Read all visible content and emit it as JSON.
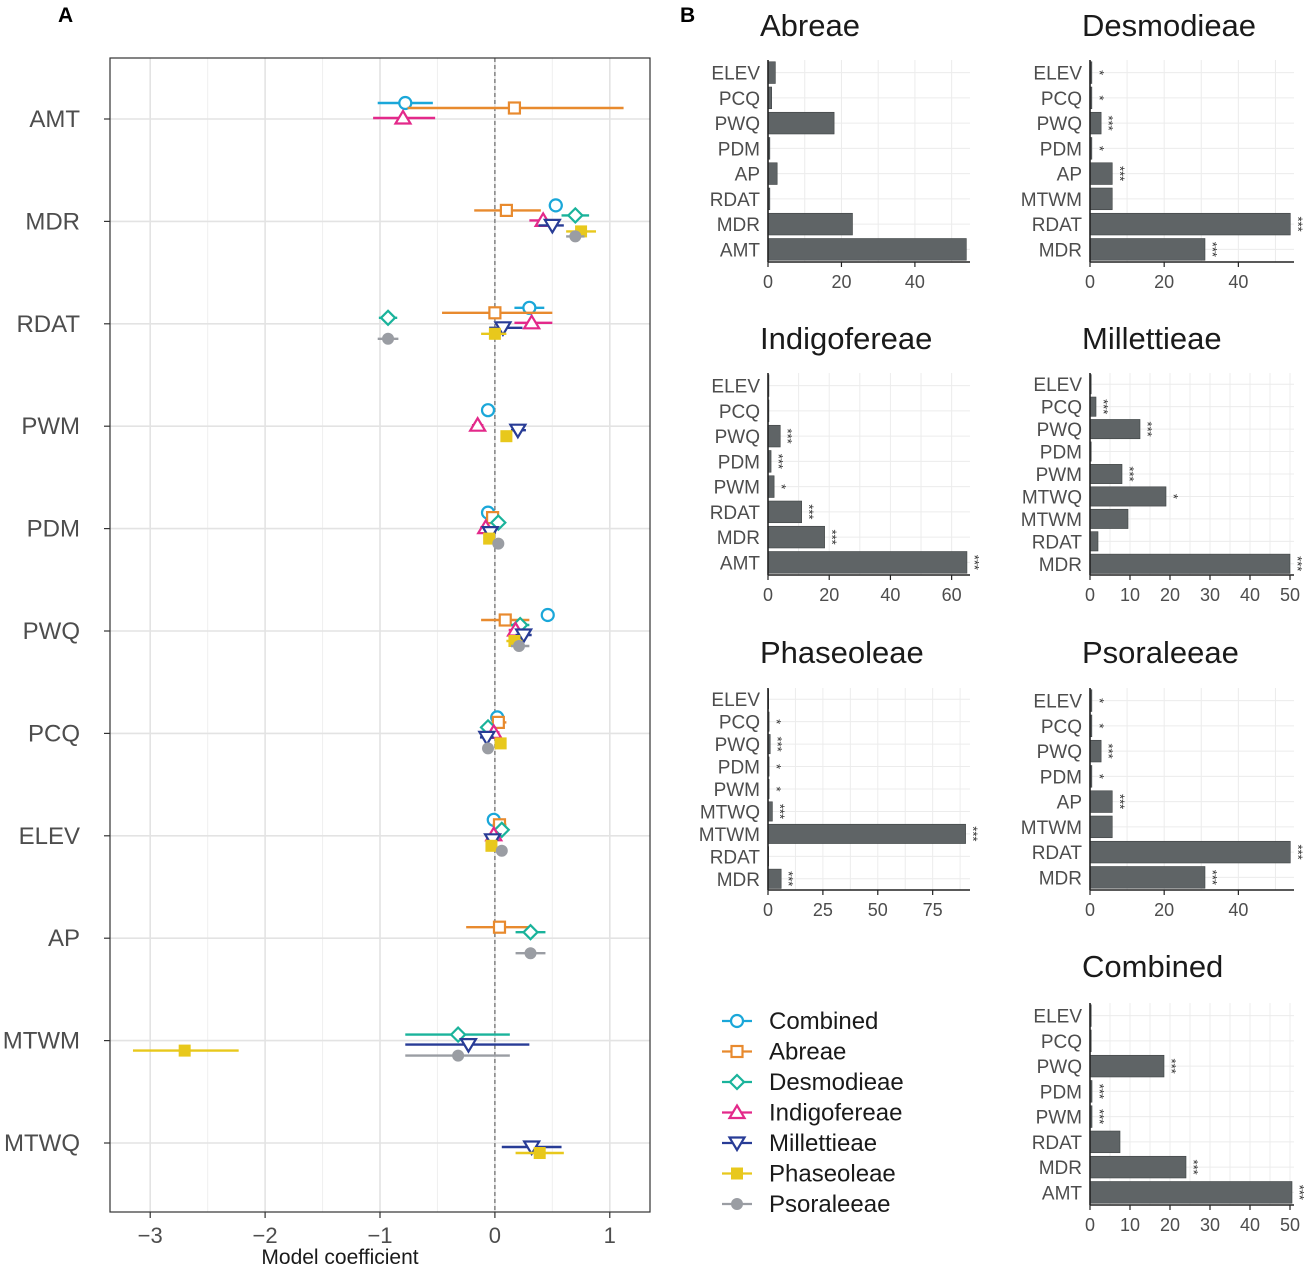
{
  "panel_a_letter": "A",
  "panel_b_letter": "B",
  "legend": [
    {
      "name": "Combined",
      "color": "#1AA7D9",
      "shape": "circle-open"
    },
    {
      "name": "Abreae",
      "color": "#E88A2E",
      "shape": "square-open"
    },
    {
      "name": "Desmodieae",
      "color": "#1AB39B",
      "shape": "diamond-open"
    },
    {
      "name": "Indigofereae",
      "color": "#E3298A",
      "shape": "triangle-up-open"
    },
    {
      "name": "Millettieae",
      "color": "#283C96",
      "shape": "triangle-down-open"
    },
    {
      "name": "Phaseoleae",
      "color": "#E8C81C",
      "shape": "square-filled"
    },
    {
      "name": "Psoraleeae",
      "color": "#9A9DA3",
      "shape": "circle-filled"
    }
  ],
  "chart_data": [
    {
      "type": "scatter",
      "subtype": "coefficient-plot",
      "xlabel": "Model coefficient",
      "xlim": [
        -3.35,
        1.35
      ],
      "xticks": [
        -3,
        -2,
        -1,
        0,
        1
      ],
      "xtick_labels": [
        "−3",
        "−2",
        "−1",
        "0",
        "1"
      ],
      "reference_line": 0,
      "categories": [
        "AMT",
        "MDR",
        "RDAT",
        "PWM",
        "PDM",
        "PWQ",
        "PCQ",
        "ELEV",
        "AP",
        "MTWM",
        "MTWQ"
      ],
      "points": [
        {
          "var": "AMT",
          "group": "Combined",
          "est": -0.78,
          "lo": -1.02,
          "hi": -0.54
        },
        {
          "var": "AMT",
          "group": "Abreae",
          "est": 0.17,
          "lo": -0.76,
          "hi": 1.12
        },
        {
          "var": "AMT",
          "group": "Indigofereae",
          "est": -0.8,
          "lo": -1.06,
          "hi": -0.52
        },
        {
          "var": "MDR",
          "group": "Combined",
          "est": 0.53,
          "lo": 0.47,
          "hi": 0.59
        },
        {
          "var": "MDR",
          "group": "Abreae",
          "est": 0.1,
          "lo": -0.18,
          "hi": 0.4
        },
        {
          "var": "MDR",
          "group": "Desmodieae",
          "est": 0.7,
          "lo": 0.58,
          "hi": 0.82
        },
        {
          "var": "MDR",
          "group": "Indigofereae",
          "est": 0.42,
          "lo": 0.3,
          "hi": 0.55
        },
        {
          "var": "MDR",
          "group": "Millettieae",
          "est": 0.5,
          "lo": 0.38,
          "hi": 0.6
        },
        {
          "var": "MDR",
          "group": "Phaseoleae",
          "est": 0.75,
          "lo": 0.62,
          "hi": 0.88
        },
        {
          "var": "MDR",
          "group": "Psoraleeae",
          "est": 0.7,
          "lo": 0.62,
          "hi": 0.78
        },
        {
          "var": "RDAT",
          "group": "Combined",
          "est": 0.3,
          "lo": 0.17,
          "hi": 0.43
        },
        {
          "var": "RDAT",
          "group": "Abreae",
          "est": 0.0,
          "lo": -0.46,
          "hi": 0.5
        },
        {
          "var": "RDAT",
          "group": "Desmodieae",
          "est": -0.93,
          "lo": -1.01,
          "hi": -0.85
        },
        {
          "var": "RDAT",
          "group": "Indigofereae",
          "est": 0.32,
          "lo": 0.17,
          "hi": 0.5
        },
        {
          "var": "RDAT",
          "group": "Millettieae",
          "est": 0.07,
          "lo": -0.05,
          "hi": 0.24
        },
        {
          "var": "RDAT",
          "group": "Phaseoleae",
          "est": 0.0,
          "lo": -0.12,
          "hi": 0.1
        },
        {
          "var": "RDAT",
          "group": "Psoraleeae",
          "est": -0.93,
          "lo": -1.02,
          "hi": -0.84
        },
        {
          "var": "PWM",
          "group": "Combined",
          "est": -0.06,
          "lo": -0.1,
          "hi": -0.02
        },
        {
          "var": "PWM",
          "group": "Indigofereae",
          "est": -0.15,
          "lo": -0.2,
          "hi": -0.1
        },
        {
          "var": "PWM",
          "group": "Millettieae",
          "est": 0.2,
          "lo": 0.14,
          "hi": 0.27
        },
        {
          "var": "PWM",
          "group": "Phaseoleae",
          "est": 0.1,
          "lo": 0.05,
          "hi": 0.15
        },
        {
          "var": "PDM",
          "group": "Combined",
          "est": -0.06,
          "lo": -0.1,
          "hi": -0.02
        },
        {
          "var": "PDM",
          "group": "Abreae",
          "est": -0.02,
          "lo": -0.06,
          "hi": 0.03
        },
        {
          "var": "PDM",
          "group": "Desmodieae",
          "est": 0.03,
          "lo": -0.02,
          "hi": 0.08
        },
        {
          "var": "PDM",
          "group": "Indigofereae",
          "est": -0.08,
          "lo": -0.13,
          "hi": -0.03
        },
        {
          "var": "PDM",
          "group": "Millettieae",
          "est": -0.04,
          "lo": -0.09,
          "hi": 0.01
        },
        {
          "var": "PDM",
          "group": "Phaseoleae",
          "est": -0.05,
          "lo": -0.1,
          "hi": 0.0
        },
        {
          "var": "PDM",
          "group": "Psoraleeae",
          "est": 0.03,
          "lo": -0.01,
          "hi": 0.07
        },
        {
          "var": "PWQ",
          "group": "Combined",
          "est": 0.46,
          "lo": 0.42,
          "hi": 0.5
        },
        {
          "var": "PWQ",
          "group": "Abreae",
          "est": 0.09,
          "lo": -0.12,
          "hi": 0.3
        },
        {
          "var": "PWQ",
          "group": "Desmodieae",
          "est": 0.22,
          "lo": 0.14,
          "hi": 0.3
        },
        {
          "var": "PWQ",
          "group": "Indigofereae",
          "est": 0.18,
          "lo": 0.12,
          "hi": 0.25
        },
        {
          "var": "PWQ",
          "group": "Millettieae",
          "est": 0.25,
          "lo": 0.18,
          "hi": 0.32
        },
        {
          "var": "PWQ",
          "group": "Phaseoleae",
          "est": 0.17,
          "lo": 0.1,
          "hi": 0.24
        },
        {
          "var": "PWQ",
          "group": "Psoraleeae",
          "est": 0.21,
          "lo": 0.14,
          "hi": 0.3
        },
        {
          "var": "PCQ",
          "group": "Combined",
          "est": 0.02,
          "lo": -0.02,
          "hi": 0.06
        },
        {
          "var": "PCQ",
          "group": "Abreae",
          "est": 0.03,
          "lo": -0.02,
          "hi": 0.1
        },
        {
          "var": "PCQ",
          "group": "Desmodieae",
          "est": -0.06,
          "lo": -0.11,
          "hi": -0.01
        },
        {
          "var": "PCQ",
          "group": "Indigofereae",
          "est": -0.01,
          "lo": -0.06,
          "hi": 0.04
        },
        {
          "var": "PCQ",
          "group": "Millettieae",
          "est": -0.07,
          "lo": -0.13,
          "hi": -0.01
        },
        {
          "var": "PCQ",
          "group": "Phaseoleae",
          "est": 0.05,
          "lo": 0.0,
          "hi": 0.1
        },
        {
          "var": "PCQ",
          "group": "Psoraleeae",
          "est": -0.06,
          "lo": -0.1,
          "hi": -0.02
        },
        {
          "var": "ELEV",
          "group": "Combined",
          "est": -0.01,
          "lo": -0.05,
          "hi": 0.03
        },
        {
          "var": "ELEV",
          "group": "Abreae",
          "est": 0.04,
          "lo": -0.02,
          "hi": 0.1
        },
        {
          "var": "ELEV",
          "group": "Desmodieae",
          "est": 0.06,
          "lo": 0.01,
          "hi": 0.11
        },
        {
          "var": "ELEV",
          "group": "Indigofereae",
          "est": -0.01,
          "lo": -0.06,
          "hi": 0.04
        },
        {
          "var": "ELEV",
          "group": "Millettieae",
          "est": -0.02,
          "lo": -0.07,
          "hi": 0.03
        },
        {
          "var": "ELEV",
          "group": "Phaseoleae",
          "est": -0.03,
          "lo": -0.08,
          "hi": 0.02
        },
        {
          "var": "ELEV",
          "group": "Psoraleeae",
          "est": 0.06,
          "lo": 0.02,
          "hi": 0.1
        },
        {
          "var": "AP",
          "group": "Abreae",
          "est": 0.04,
          "lo": -0.25,
          "hi": 0.32
        },
        {
          "var": "AP",
          "group": "Desmodieae",
          "est": 0.31,
          "lo": 0.18,
          "hi": 0.44
        },
        {
          "var": "AP",
          "group": "Psoraleeae",
          "est": 0.31,
          "lo": 0.18,
          "hi": 0.44
        },
        {
          "var": "MTWM",
          "group": "Desmodieae",
          "est": -0.32,
          "lo": -0.78,
          "hi": 0.13
        },
        {
          "var": "MTWM",
          "group": "Millettieae",
          "est": -0.23,
          "lo": -0.78,
          "hi": 0.3
        },
        {
          "var": "MTWM",
          "group": "Phaseoleae",
          "est": -2.7,
          "lo": -3.15,
          "hi": -2.23
        },
        {
          "var": "MTWM",
          "group": "Psoraleeae",
          "est": -0.32,
          "lo": -0.78,
          "hi": 0.13
        },
        {
          "var": "MTWQ",
          "group": "Millettieae",
          "est": 0.32,
          "lo": 0.06,
          "hi": 0.58
        },
        {
          "var": "MTWQ",
          "group": "Phaseoleae",
          "est": 0.39,
          "lo": 0.18,
          "hi": 0.6
        }
      ]
    },
    {
      "type": "bar",
      "orientation": "horizontal",
      "title": "Abreae",
      "xlim": [
        0,
        55
      ],
      "xticks": [
        0,
        20,
        40
      ],
      "bars": [
        {
          "label": "ELEV",
          "value": 2.0,
          "sig": ""
        },
        {
          "label": "PCQ",
          "value": 1.0,
          "sig": ""
        },
        {
          "label": "PWQ",
          "value": 18.0,
          "sig": ""
        },
        {
          "label": "PDM",
          "value": 0.5,
          "sig": ""
        },
        {
          "label": "AP",
          "value": 2.5,
          "sig": ""
        },
        {
          "label": "RDAT",
          "value": 0.5,
          "sig": ""
        },
        {
          "label": "MDR",
          "value": 23.0,
          "sig": ""
        },
        {
          "label": "AMT",
          "value": 54.0,
          "sig": ""
        }
      ]
    },
    {
      "type": "bar",
      "orientation": "horizontal",
      "title": "Desmodieae",
      "xlim": [
        0,
        55
      ],
      "xticks": [
        0,
        20,
        40
      ],
      "bars": [
        {
          "label": "ELEV",
          "value": 0.5,
          "sig": "*"
        },
        {
          "label": "PCQ",
          "value": 0.5,
          "sig": "*"
        },
        {
          "label": "PWQ",
          "value": 3.0,
          "sig": "***"
        },
        {
          "label": "PDM",
          "value": 0.5,
          "sig": "*"
        },
        {
          "label": "AP",
          "value": 6.0,
          "sig": "***"
        },
        {
          "label": "MTWM",
          "value": 6.0,
          "sig": ""
        },
        {
          "label": "RDAT",
          "value": 54.0,
          "sig": "***"
        },
        {
          "label": "MDR",
          "value": 31.0,
          "sig": "***"
        }
      ]
    },
    {
      "type": "bar",
      "orientation": "horizontal",
      "title": "Indigofereae",
      "xlim": [
        0,
        66
      ],
      "xticks": [
        0,
        20,
        40,
        60
      ],
      "bars": [
        {
          "label": "ELEV",
          "value": 0.3,
          "sig": ""
        },
        {
          "label": "PCQ",
          "value": 0.3,
          "sig": ""
        },
        {
          "label": "PWQ",
          "value": 4.0,
          "sig": "***"
        },
        {
          "label": "PDM",
          "value": 1.0,
          "sig": "***"
        },
        {
          "label": "PWM",
          "value": 2.0,
          "sig": "*"
        },
        {
          "label": "RDAT",
          "value": 11.0,
          "sig": "***"
        },
        {
          "label": "MDR",
          "value": 18.5,
          "sig": "***"
        },
        {
          "label": "AMT",
          "value": 65.0,
          "sig": "***"
        }
      ]
    },
    {
      "type": "bar",
      "orientation": "horizontal",
      "title": "Millettieae",
      "xlim": [
        0,
        51
      ],
      "xticks": [
        0,
        10,
        20,
        30,
        40,
        50
      ],
      "xtick_labels": [
        "0",
        "10",
        "20",
        "30",
        "40",
        "50"
      ],
      "bars": [
        {
          "label": "ELEV",
          "value": 0.3,
          "sig": ""
        },
        {
          "label": "PCQ",
          "value": 1.5,
          "sig": "***"
        },
        {
          "label": "PWQ",
          "value": 12.5,
          "sig": "***"
        },
        {
          "label": "PDM",
          "value": 0.3,
          "sig": ""
        },
        {
          "label": "PWM",
          "value": 8.0,
          "sig": "***"
        },
        {
          "label": "MTWQ",
          "value": 19.0,
          "sig": "*"
        },
        {
          "label": "MTWM",
          "value": 9.5,
          "sig": ""
        },
        {
          "label": "RDAT",
          "value": 2.0,
          "sig": ""
        },
        {
          "label": "MDR",
          "value": 50.0,
          "sig": "***"
        }
      ]
    },
    {
      "type": "bar",
      "orientation": "horizontal",
      "title": "Phaseoleae",
      "xlim": [
        0,
        92
      ],
      "xticks": [
        0,
        25,
        50,
        75
      ],
      "bars": [
        {
          "label": "ELEV",
          "value": 0.3,
          "sig": ""
        },
        {
          "label": "PCQ",
          "value": 0.5,
          "sig": "*"
        },
        {
          "label": "PWQ",
          "value": 1.0,
          "sig": "***"
        },
        {
          "label": "PDM",
          "value": 0.5,
          "sig": "*"
        },
        {
          "label": "PWM",
          "value": 0.5,
          "sig": "*"
        },
        {
          "label": "MTWQ",
          "value": 2.0,
          "sig": "***"
        },
        {
          "label": "MTWM",
          "value": 90.0,
          "sig": "***"
        },
        {
          "label": "RDAT",
          "value": 0.3,
          "sig": ""
        },
        {
          "label": "MDR",
          "value": 6.0,
          "sig": "***"
        }
      ]
    },
    {
      "type": "bar",
      "orientation": "horizontal",
      "title": "Psoraleeae",
      "xlim": [
        0,
        55
      ],
      "xticks": [
        0,
        20,
        40
      ],
      "bars": [
        {
          "label": "ELEV",
          "value": 0.5,
          "sig": "*"
        },
        {
          "label": "PCQ",
          "value": 0.5,
          "sig": "*"
        },
        {
          "label": "PWQ",
          "value": 3.0,
          "sig": "***"
        },
        {
          "label": "PDM",
          "value": 0.5,
          "sig": "*"
        },
        {
          "label": "AP",
          "value": 6.0,
          "sig": "***"
        },
        {
          "label": "MTWM",
          "value": 6.0,
          "sig": ""
        },
        {
          "label": "RDAT",
          "value": 54.0,
          "sig": "***"
        },
        {
          "label": "MDR",
          "value": 31.0,
          "sig": "***"
        }
      ]
    },
    {
      "type": "bar",
      "orientation": "horizontal",
      "title": "Combined",
      "xlim": [
        0,
        51
      ],
      "xticks": [
        0,
        10,
        20,
        30,
        40,
        50
      ],
      "bars": [
        {
          "label": "ELEV",
          "value": 0.3,
          "sig": ""
        },
        {
          "label": "PCQ",
          "value": 0.3,
          "sig": ""
        },
        {
          "label": "PWQ",
          "value": 18.5,
          "sig": "***"
        },
        {
          "label": "PDM",
          "value": 0.5,
          "sig": "***"
        },
        {
          "label": "PWM",
          "value": 0.5,
          "sig": "***"
        },
        {
          "label": "RDAT",
          "value": 7.5,
          "sig": ""
        },
        {
          "label": "MDR",
          "value": 24.0,
          "sig": "***"
        },
        {
          "label": "AMT",
          "value": 50.5,
          "sig": "***"
        }
      ]
    }
  ]
}
